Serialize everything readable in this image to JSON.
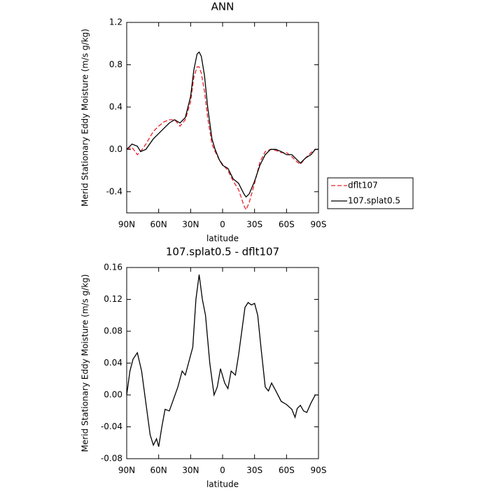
{
  "chart_data": [
    {
      "type": "line",
      "title": "ANN",
      "x_label": "latitude",
      "y_label": "Merid Stationary Eddy Moisture (m/s g/kg)",
      "x": [
        90,
        85,
        80,
        77,
        72,
        65,
        60,
        55,
        50,
        45,
        40,
        35,
        30,
        27,
        24,
        22,
        20,
        17,
        14,
        10,
        7,
        3,
        0,
        -5,
        -10,
        -15,
        -20,
        -22,
        -25,
        -30,
        -35,
        -40,
        -45,
        -50,
        -55,
        -60,
        -65,
        -70,
        -73,
        -78,
        -83,
        -87,
        -90
      ],
      "series": [
        {
          "name": "dflt107",
          "color": "#e8202a",
          "dash": true,
          "values": [
            0.0,
            0.02,
            -0.05,
            -0.02,
            0.05,
            0.17,
            0.22,
            0.26,
            0.28,
            0.28,
            0.22,
            0.28,
            0.45,
            0.68,
            0.78,
            0.78,
            0.72,
            0.55,
            0.3,
            0.05,
            -0.02,
            -0.1,
            -0.14,
            -0.2,
            -0.3,
            -0.38,
            -0.53,
            -0.57,
            -0.5,
            -0.32,
            -0.12,
            -0.02,
            0.0,
            -0.01,
            -0.03,
            -0.03,
            -0.07,
            -0.12,
            -0.14,
            -0.08,
            -0.03,
            0.0,
            0.0
          ]
        },
        {
          "name": "107.splat0.5",
          "color": "#000000",
          "dash": false,
          "values": [
            0.0,
            0.05,
            0.03,
            -0.02,
            0.0,
            0.1,
            0.15,
            0.2,
            0.25,
            0.28,
            0.25,
            0.3,
            0.5,
            0.75,
            0.9,
            0.92,
            0.88,
            0.7,
            0.4,
            0.1,
            0.0,
            -0.1,
            -0.15,
            -0.18,
            -0.28,
            -0.32,
            -0.42,
            -0.45,
            -0.42,
            -0.3,
            -0.15,
            -0.05,
            0.0,
            0.0,
            -0.02,
            -0.05,
            -0.05,
            -0.1,
            -0.13,
            -0.08,
            -0.05,
            0.0,
            0.0
          ]
        }
      ],
      "xlim": [
        90,
        -90
      ],
      "xticks": [
        {
          "value": 90,
          "label": "90N"
        },
        {
          "value": 60,
          "label": "60N"
        },
        {
          "value": 30,
          "label": "30N"
        },
        0,
        {
          "value": -30,
          "label": "30S"
        },
        {
          "value": -60,
          "label": "60S"
        },
        {
          "value": -90,
          "label": "90S"
        }
      ],
      "ylim": [
        -0.6,
        1.2
      ],
      "yticks": [
        1.2,
        0.8,
        0.4,
        {
          "value": 0,
          "label": "0.0"
        },
        -0.4
      ],
      "legend_position": "right"
    },
    {
      "type": "line",
      "title": "107.splat0.5 - dflt107",
      "x_label": "latitude",
      "y_label": "Merid Stationary Eddy Moisture (m/s g/kg)",
      "x": [
        90,
        87,
        84,
        80,
        76,
        72,
        68,
        65,
        62,
        60,
        57,
        54,
        50,
        46,
        42,
        38,
        35,
        32,
        28,
        25,
        22,
        19,
        16,
        12,
        8,
        5,
        2,
        -2,
        -5,
        -8,
        -12,
        -15,
        -18,
        -21,
        -24,
        -27,
        -30,
        -33,
        -36,
        -40,
        -43,
        -46,
        -50,
        -55,
        -60,
        -65,
        -68,
        -70,
        -73,
        -76,
        -79,
        -83,
        -87,
        -90
      ],
      "values": [
        0.0,
        0.03,
        0.045,
        0.053,
        0.03,
        -0.01,
        -0.05,
        -0.063,
        -0.055,
        -0.065,
        -0.04,
        -0.018,
        -0.02,
        -0.005,
        0.01,
        0.03,
        0.025,
        0.04,
        0.06,
        0.12,
        0.151,
        0.12,
        0.1,
        0.04,
        0.0,
        0.01,
        0.033,
        0.015,
        0.008,
        0.03,
        0.025,
        0.05,
        0.08,
        0.11,
        0.116,
        0.113,
        0.115,
        0.1,
        0.06,
        0.01,
        0.005,
        0.015,
        0.005,
        -0.008,
        -0.012,
        -0.018,
        -0.028,
        -0.017,
        -0.013,
        -0.02,
        -0.022,
        -0.01,
        0.0,
        0.0
      ],
      "color": "#000000",
      "xlim": [
        90,
        -90
      ],
      "xticks": [
        {
          "value": 90,
          "label": "90N"
        },
        {
          "value": 60,
          "label": "60N"
        },
        {
          "value": 30,
          "label": "30N"
        },
        0,
        {
          "value": -30,
          "label": "30S"
        },
        {
          "value": -60,
          "label": "60S"
        },
        {
          "value": -90,
          "label": "90S"
        }
      ],
      "ylim": [
        -0.08,
        0.16
      ],
      "yticks": [
        0.16,
        0.12,
        0.08,
        0.04,
        {
          "value": 0,
          "label": "0.00"
        },
        -0.04,
        -0.08
      ]
    }
  ]
}
